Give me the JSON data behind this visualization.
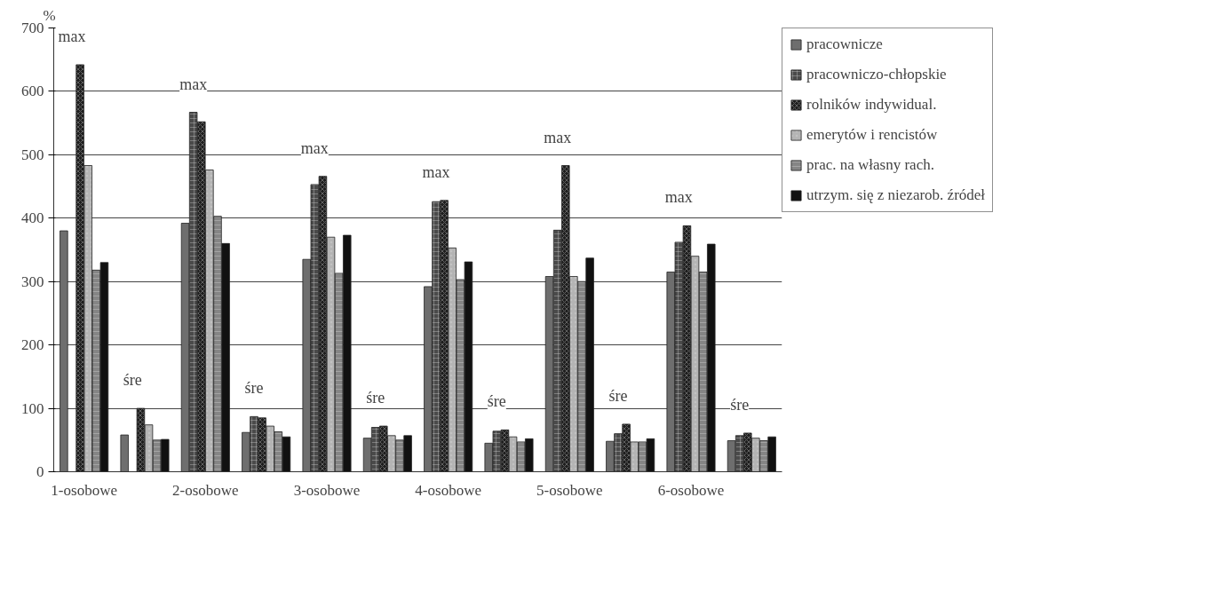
{
  "chart_data": {
    "type": "bar",
    "ylabel": "%",
    "categories": [
      "1-osobowe",
      null,
      "2-osobowe",
      null,
      "3-osobowe",
      null,
      "4-osobowe",
      null,
      "5-osobowe",
      null,
      "6-osobowe",
      null
    ],
    "series": [
      {
        "name": "pracownicze",
        "color": "#6e6e6e",
        "values": [
          380,
          58,
          392,
          62,
          335,
          53,
          292,
          45,
          308,
          48,
          315,
          49
        ]
      },
      {
        "name": "pracowniczo-chłopskie",
        "color": "#4a4a4a",
        "values": [
          null,
          null,
          567,
          87,
          453,
          70,
          426,
          64,
          381,
          60,
          362,
          57
        ]
      },
      {
        "name": "rolników indywidual.",
        "color": "#1e1e1e",
        "values": [
          642,
          100,
          552,
          85,
          466,
          72,
          428,
          66,
          483,
          75,
          388,
          61
        ]
      },
      {
        "name": "emerytów i rencistów",
        "color": "#b4b4b4",
        "values": [
          483,
          74,
          476,
          72,
          370,
          57,
          353,
          55,
          308,
          47,
          340,
          53
        ]
      },
      {
        "name": "prac. na własny rach.",
        "color": "#858585",
        "values": [
          318,
          50,
          403,
          63,
          313,
          50,
          303,
          47,
          300,
          47,
          315,
          49
        ]
      },
      {
        "name": "utrzym. się z niezarob. źródeł",
        "color": "#111111",
        "values": [
          330,
          51,
          360,
          55,
          373,
          57,
          331,
          52,
          337,
          52,
          359,
          55
        ]
      }
    ],
    "annotations": [
      "max",
      "śre",
      "max",
      "śre",
      "max",
      "śre",
      "max",
      "śre",
      "max",
      "śre",
      "max",
      "śre"
    ],
    "ylim": [
      0,
      700
    ],
    "yticks": [
      0,
      100,
      200,
      300,
      400,
      500,
      600,
      700
    ],
    "grid": "y",
    "legend": "right"
  }
}
